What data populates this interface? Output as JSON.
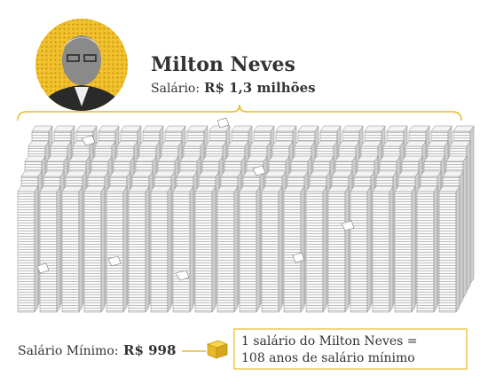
{
  "header": {
    "name": "Milton Neves",
    "salary_label": "Salário:",
    "salary_value": "R$ 1,3 milhões"
  },
  "footer": {
    "min_label": "Salário Mínimo:",
    "min_value": "R$ 998",
    "legend": [
      "1 salário do Milton Neves =",
      "108 anos de salário mínimo"
    ]
  }
}
